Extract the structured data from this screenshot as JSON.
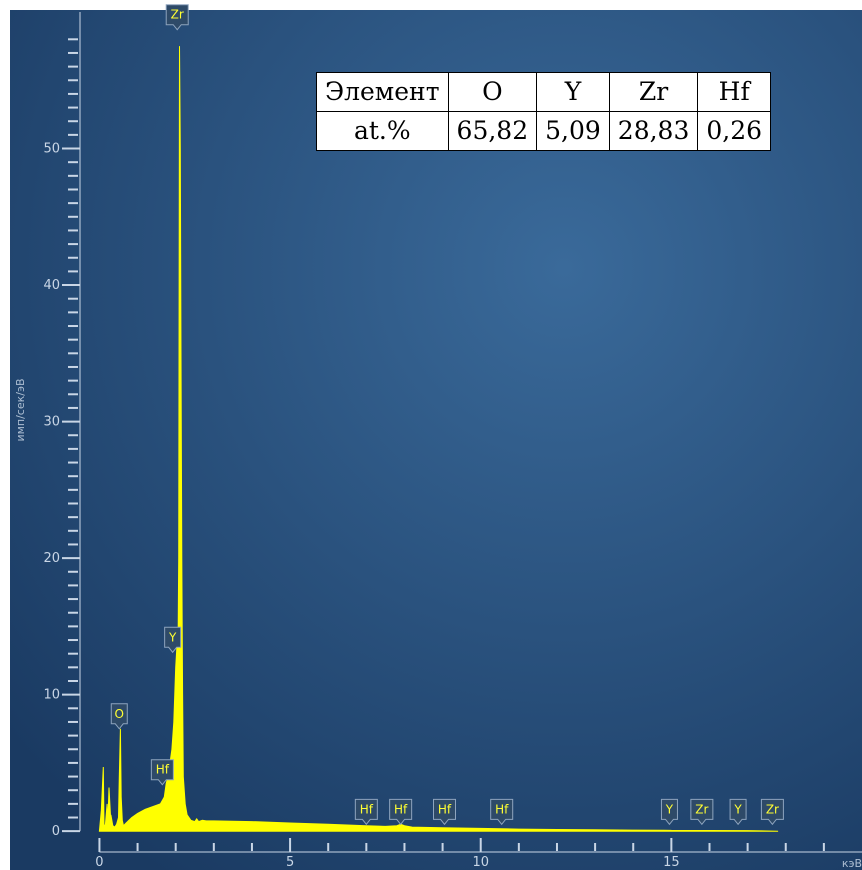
{
  "chart_data": {
    "type": "line",
    "title": "",
    "xlabel": "кэВ",
    "ylabel": "имп/сек/эВ",
    "xlim": [
      -0.3,
      20
    ],
    "ylim": [
      -0.5,
      60
    ],
    "x_ticks": [
      0,
      5,
      10,
      15
    ],
    "y_ticks": [
      0,
      10,
      20,
      30,
      40,
      50
    ],
    "grid": false,
    "fill_color": "#ffff00",
    "background_colors": [
      "#3a6a9a",
      "#1a3a62"
    ],
    "series": [
      {
        "x": [
          0.0,
          0.05,
          0.1,
          0.12,
          0.15,
          0.2,
          0.22,
          0.25,
          0.3,
          0.3,
          0.35,
          0.4,
          0.45,
          0.5,
          0.52,
          0.55,
          0.57,
          0.6,
          0.63,
          0.7,
          0.85,
          1.0,
          1.2,
          1.4,
          1.6,
          1.7,
          1.75,
          1.8,
          1.85,
          1.9,
          1.95,
          2.0,
          2.02,
          2.04,
          2.06,
          2.08,
          2.1,
          2.12,
          2.14,
          2.16,
          2.18,
          2.2,
          2.25,
          2.3,
          2.35,
          2.4,
          2.5,
          2.55,
          2.6,
          2.7,
          2.8,
          3.0,
          3.5,
          4.0,
          5.0,
          6.0,
          7.0,
          7.5,
          7.8,
          7.9,
          8.0,
          8.2,
          9.0,
          10.0,
          11.0,
          12.0,
          13.0,
          14.0,
          14.8,
          15.0,
          16.0,
          17.0,
          17.8
        ],
        "y": [
          0.0,
          1.5,
          4.7,
          0.5,
          0.3,
          2.0,
          0.5,
          3.2,
          0.6,
          1.2,
          0.4,
          0.3,
          0.5,
          1.0,
          4.0,
          7.5,
          2.5,
          0.8,
          0.4,
          0.6,
          1.0,
          1.3,
          1.6,
          1.8,
          2.0,
          2.5,
          3.5,
          4.0,
          5.0,
          6.0,
          8.0,
          12.0,
          13.0,
          14.0,
          13.0,
          20.0,
          57.5,
          50.0,
          35.0,
          20.0,
          10.0,
          4.0,
          2.0,
          1.2,
          1.0,
          0.8,
          0.7,
          0.9,
          0.7,
          0.8,
          0.75,
          0.75,
          0.72,
          0.7,
          0.6,
          0.5,
          0.4,
          0.35,
          0.4,
          0.5,
          0.4,
          0.3,
          0.25,
          0.2,
          0.15,
          0.12,
          0.1,
          0.08,
          0.07,
          0.06,
          0.05,
          0.04,
          0.0
        ]
      }
    ],
    "peak_labels": [
      {
        "text": "Zr",
        "x": 2.04,
        "y": 59.8
      },
      {
        "text": "Y",
        "x": 1.92,
        "y": 14.2
      },
      {
        "text": "O",
        "x": 0.52,
        "y": 8.6
      },
      {
        "text": "Hf",
        "x": 1.65,
        "y": 4.5
      },
      {
        "text": "Hf",
        "x": 7.0,
        "y": 1.6
      },
      {
        "text": "Hf",
        "x": 7.9,
        "y": 1.6
      },
      {
        "text": "Hf",
        "x": 9.05,
        "y": 1.6
      },
      {
        "text": "Hf",
        "x": 10.55,
        "y": 1.6
      },
      {
        "text": "Y",
        "x": 14.95,
        "y": 1.6
      },
      {
        "text": "Zr",
        "x": 15.8,
        "y": 1.6
      },
      {
        "text": "Y",
        "x": 16.75,
        "y": 1.6
      },
      {
        "text": "Zr",
        "x": 17.65,
        "y": 1.6
      }
    ]
  },
  "table": {
    "headers": [
      "Элемент",
      "O",
      "Y",
      "Zr",
      "Hf"
    ],
    "row": [
      "at.%",
      "65,82",
      "5,09",
      "28,83",
      "0,26"
    ]
  }
}
